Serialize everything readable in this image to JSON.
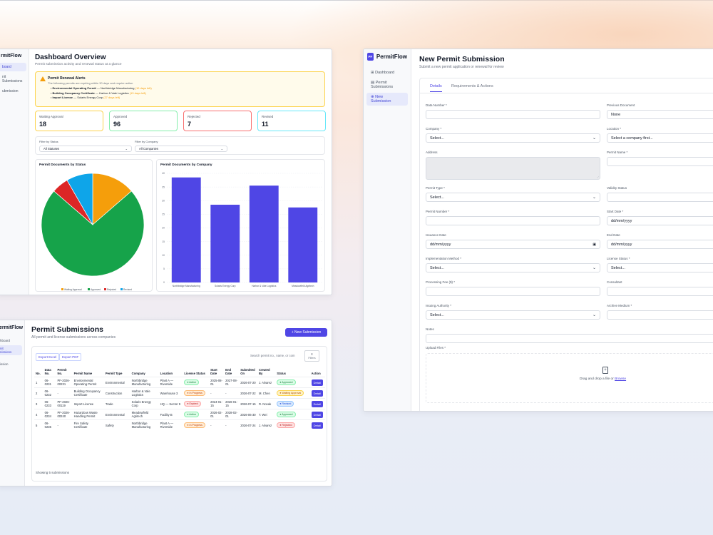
{
  "dashboard": {
    "brand": "rmitFlow",
    "nav": [
      "board",
      "nit Submissions",
      "ubmission"
    ],
    "title": "Dashboard Overview",
    "subtitle": "Permit submission activity and renewal status at a glance",
    "alert": {
      "title": "Permit Renewal Alerts",
      "desc": "The following permits are expiring within 30 days and require action",
      "items": [
        {
          "name": "Environmental Operating Permit",
          "company": "— Northbridge Manufacturing",
          "days": "(10 days left)"
        },
        {
          "name": "Building Occupancy Certificate",
          "company": "— Harbor & Vale Logistics",
          "days": "(13 days left)"
        },
        {
          "name": "Import License",
          "company": "— Solaris Energy Corp",
          "days": "(27 days left)"
        }
      ]
    },
    "stats": [
      {
        "label": "Waiting Approval",
        "value": "18",
        "color": "#f59e0b"
      },
      {
        "label": "Approved",
        "value": "96",
        "color": "#22c55e"
      },
      {
        "label": "Rejected",
        "value": "7",
        "color": "#ef4444"
      },
      {
        "label": "Revised",
        "value": "11",
        "color": "#06b6d4"
      }
    ],
    "filter_status": {
      "label": "Filter by Status",
      "value": "All Statuses"
    },
    "filter_company": {
      "label": "Filter by Company",
      "value": "All Companies"
    },
    "pie_title": "Permit Documents by Status",
    "bar_title": "Permit Documents by Company"
  },
  "chart_data": [
    {
      "type": "pie",
      "title": "Permit Documents by Status",
      "categories": [
        "Waiting Approval",
        "Approved",
        "Rejected",
        "Revised"
      ],
      "values": [
        18,
        96,
        7,
        11
      ],
      "colors": [
        "#f59e0b",
        "#16a34a",
        "#dc2626",
        "#0ea5e9"
      ],
      "legend": "bottom"
    },
    {
      "type": "bar",
      "title": "Permit Documents by Company",
      "categories": [
        "Northbridge Manufacturing",
        "Solaris Energy Corp",
        "Harbor & Vale Logistics",
        "Meadowfield Agritech"
      ],
      "values": [
        38.5,
        28.5,
        35.5,
        27.5
      ],
      "ylim": [
        0,
        40
      ],
      "yticks": [
        "0",
        "5",
        "10",
        "15",
        "20",
        "25",
        "30",
        "35",
        "40"
      ],
      "color": "#4f46e5",
      "grid": true
    }
  ],
  "submissions": {
    "brand": "ermitFlow",
    "nav": [
      "hboard",
      "nit\nnissions",
      "ission"
    ],
    "title": "Permit Submissions",
    "subtitle": "All permit and license submissions across companies",
    "new_button": "+ New Submission",
    "export_excel": "Export Excel",
    "export_pdf": "Export PDF",
    "search_placeholder": "Search permit no., name, or com",
    "filters": "Filters",
    "headers": [
      "No.",
      "Data No.",
      "Permit No.",
      "Permit Name",
      "Permit Type",
      "Company",
      "Location",
      "License Status",
      "Start Date",
      "End Date",
      "Submitted On",
      "Created By",
      "Status",
      "Action"
    ],
    "rows": [
      [
        "1",
        "06-0231",
        "PF-2026-00231",
        "Environmental Operating Permit",
        "Environmental",
        "Northbridge Manufacturing",
        "Plant A — Riverside",
        "Active",
        "2025-08-01",
        "2027-08-01",
        "2026-07-20",
        "J. Alvarez",
        "Approved",
        "Detail"
      ],
      [
        "2",
        "06-0232",
        "-",
        "Building Occupancy Certificate",
        "Construction",
        "Harbor & Vale Logistics",
        "Warehouse 3",
        "In Progress",
        "-",
        "-",
        "2026-07-22",
        "M. Chen",
        "Waiting Approval",
        "Detail"
      ],
      [
        "3",
        "06-0233",
        "PF-2026-00119",
        "Import License",
        "Trade",
        "Solaris Energy Corp",
        "HQ — Sector 9",
        "Expired",
        "2024-01-15",
        "2026-01-15",
        "2026-07-15",
        "R. Novak",
        "Revised",
        "Detail"
      ],
      [
        "4",
        "06-0234",
        "PF-2026-00240",
        "Hazardous Waste Handling Permit",
        "Environmental",
        "Meadowfield Agritech",
        "Facility B",
        "Active",
        "2026-02-01",
        "2028-02-01",
        "2026-06-30",
        "T. Wei",
        "Approved",
        "Detail"
      ],
      [
        "5",
        "06-0235",
        "-",
        "Fire Safety Certificate",
        "Safety",
        "Northbridge Manufacturing",
        "Plant A — Riverside",
        "In Progress",
        "-",
        "-",
        "2026-07-24",
        "J. Alvarez",
        "Rejected",
        "Detail"
      ]
    ],
    "footer": "Showing 5 submissions"
  },
  "form": {
    "logo": "PF",
    "brand": "PermitFlow",
    "nav": [
      "Dashboard",
      "Permit Submissions",
      "New Submission"
    ],
    "title": "New Permit Submission",
    "subtitle": "Submit a new permit application or renewal for review",
    "tabs": [
      "Details",
      "Requirements & Actions"
    ],
    "fields": {
      "data_number": {
        "label": "Data Number *",
        "value": ""
      },
      "previous_document": {
        "label": "Previous Document",
        "value": "None"
      },
      "company": {
        "label": "Company *",
        "value": "Select..."
      },
      "location": {
        "label": "Location *",
        "value": "Select a company first..."
      },
      "address": {
        "label": "Address",
        "value": ""
      },
      "permit_name": {
        "label": "Permit Name *",
        "value": ""
      },
      "permit_type": {
        "label": "Permit Type *",
        "value": "Select..."
      },
      "validity_status": {
        "label": "Validity Status",
        "value": ""
      },
      "permit_number": {
        "label": "Permit Number *",
        "value": ""
      },
      "start_date": {
        "label": "Start Date *",
        "value": "dd/mm/yyyy"
      },
      "issuance_date": {
        "label": "Issuance Date",
        "value": "dd/mm/yyyy"
      },
      "end_date": {
        "label": "End Date",
        "value": "dd/mm/yyyy"
      },
      "implementation_method": {
        "label": "Implementation Method *",
        "value": "Select..."
      },
      "license_status": {
        "label": "License Status *",
        "value": "Select..."
      },
      "processing_fee": {
        "label": "Processing Fee ($) *",
        "value": ""
      },
      "consultant": {
        "label": "Consultant",
        "value": ""
      },
      "issuing_authority": {
        "label": "Issuing Authority *",
        "value": "Select..."
      },
      "archive_medium": {
        "label": "Archive Medium *",
        "value": ""
      },
      "notes": {
        "label": "Notes",
        "value": ""
      },
      "upload": {
        "label": "Upload Files *",
        "text": "Drag and drop a file or ",
        "link": "Browse"
      }
    }
  }
}
